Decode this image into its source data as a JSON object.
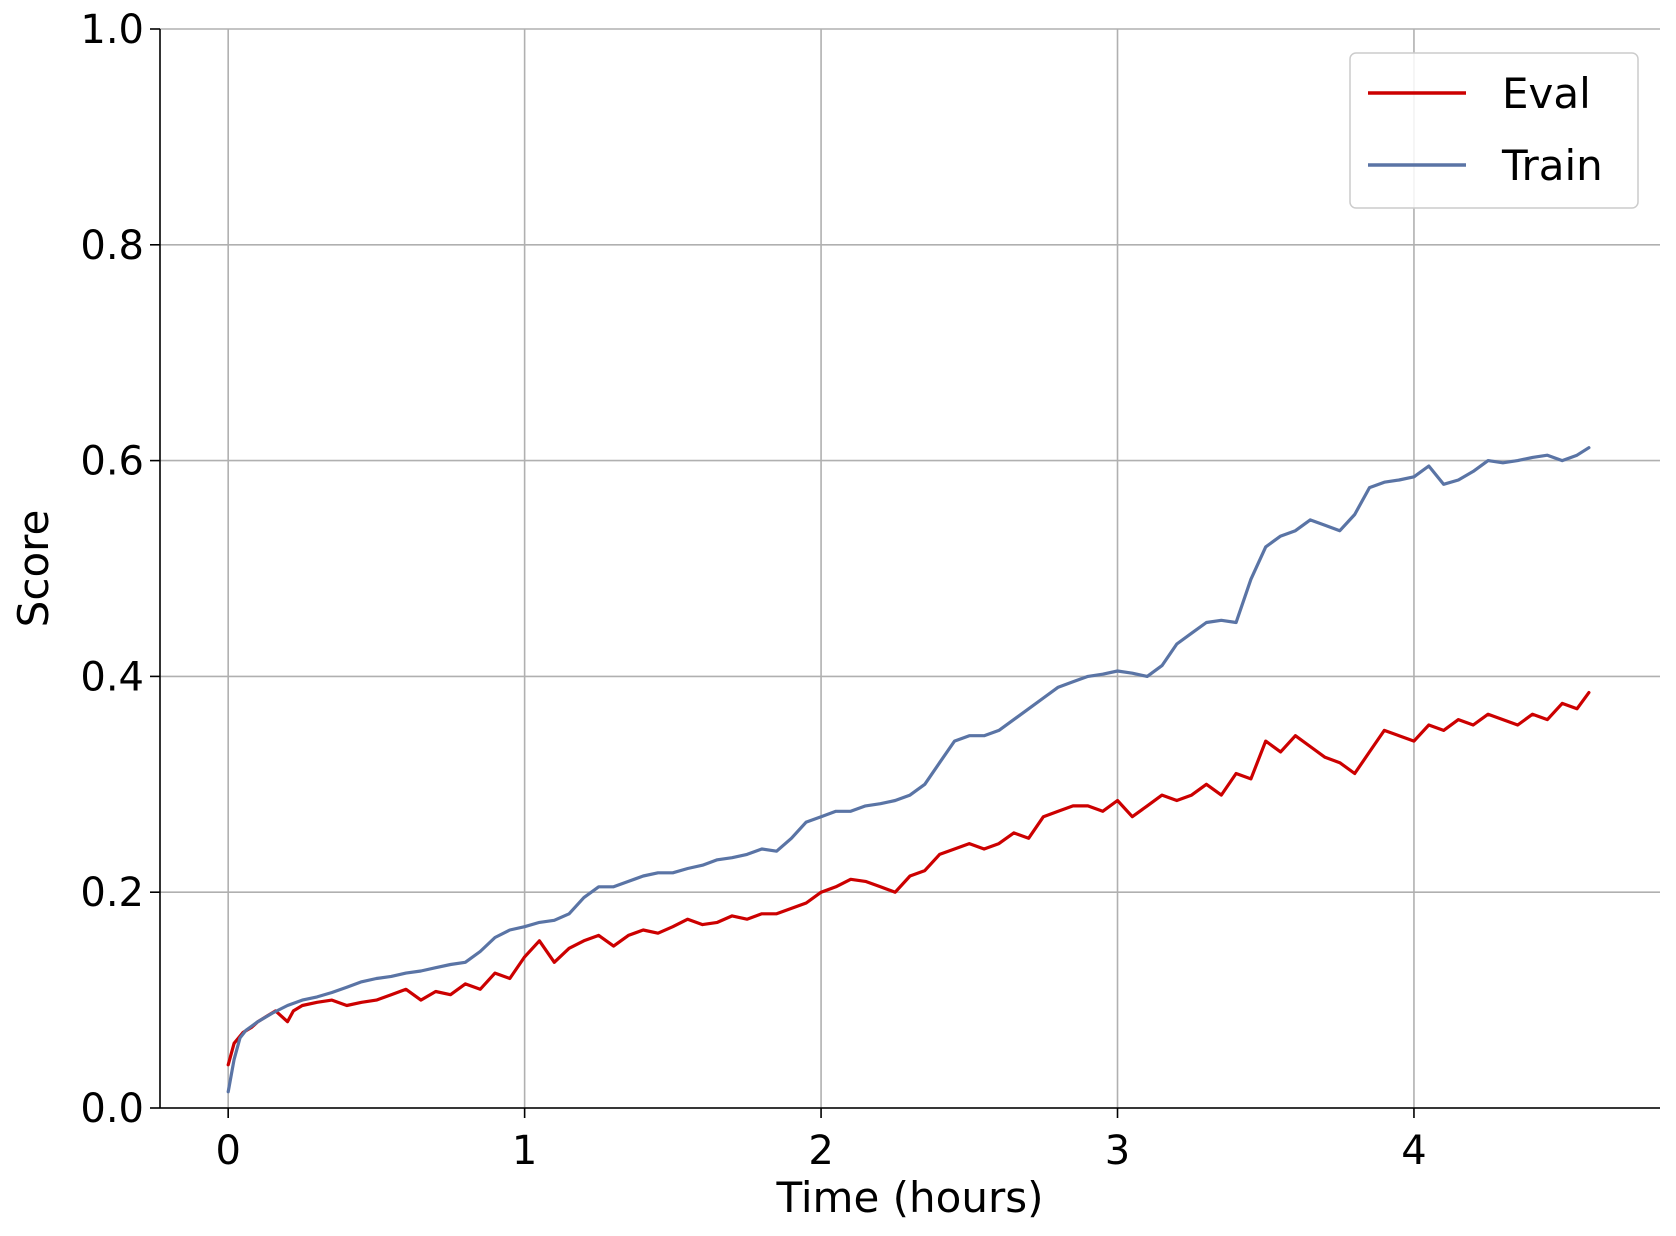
{
  "chart_data": {
    "type": "line",
    "title": "",
    "xlabel": "Time (hours)",
    "ylabel": "Score",
    "xlim": [
      -0.23,
      4.83
    ],
    "ylim": [
      0.0,
      1.0
    ],
    "xticks": [
      0,
      1,
      2,
      3,
      4
    ],
    "yticks": [
      0.0,
      0.2,
      0.4,
      0.6,
      0.8,
      1.0
    ],
    "xtick_labels": [
      "0",
      "1",
      "2",
      "3",
      "4"
    ],
    "ytick_labels": [
      "0.0",
      "0.2",
      "0.4",
      "0.6",
      "0.8",
      "1.0"
    ],
    "grid": true,
    "legend": {
      "position": "top-right"
    },
    "series": [
      {
        "name": "Eval",
        "color": "#cc0000",
        "x": [
          0.0,
          0.02,
          0.05,
          0.08,
          0.1,
          0.13,
          0.16,
          0.2,
          0.22,
          0.25,
          0.3,
          0.35,
          0.4,
          0.45,
          0.5,
          0.55,
          0.6,
          0.65,
          0.7,
          0.75,
          0.8,
          0.85,
          0.9,
          0.95,
          1.0,
          1.05,
          1.1,
          1.15,
          1.2,
          1.25,
          1.3,
          1.35,
          1.4,
          1.45,
          1.5,
          1.55,
          1.6,
          1.65,
          1.7,
          1.75,
          1.8,
          1.85,
          1.9,
          1.95,
          2.0,
          2.05,
          2.1,
          2.15,
          2.2,
          2.25,
          2.3,
          2.35,
          2.4,
          2.45,
          2.5,
          2.55,
          2.6,
          2.65,
          2.7,
          2.75,
          2.8,
          2.85,
          2.9,
          2.95,
          3.0,
          3.05,
          3.1,
          3.15,
          3.2,
          3.25,
          3.3,
          3.35,
          3.4,
          3.45,
          3.5,
          3.55,
          3.6,
          3.65,
          3.7,
          3.75,
          3.8,
          3.85,
          3.9,
          3.95,
          4.0,
          4.05,
          4.1,
          4.15,
          4.2,
          4.25,
          4.3,
          4.35,
          4.4,
          4.45,
          4.5,
          4.55,
          4.59
        ],
        "y": [
          0.04,
          0.06,
          0.07,
          0.075,
          0.08,
          0.085,
          0.09,
          0.08,
          0.09,
          0.095,
          0.098,
          0.1,
          0.095,
          0.098,
          0.1,
          0.105,
          0.11,
          0.1,
          0.108,
          0.105,
          0.115,
          0.11,
          0.125,
          0.12,
          0.14,
          0.155,
          0.135,
          0.148,
          0.155,
          0.16,
          0.15,
          0.16,
          0.165,
          0.162,
          0.168,
          0.175,
          0.17,
          0.172,
          0.178,
          0.175,
          0.18,
          0.18,
          0.185,
          0.19,
          0.2,
          0.205,
          0.212,
          0.21,
          0.205,
          0.2,
          0.215,
          0.22,
          0.235,
          0.24,
          0.245,
          0.24,
          0.245,
          0.255,
          0.25,
          0.27,
          0.275,
          0.28,
          0.28,
          0.275,
          0.285,
          0.27,
          0.28,
          0.29,
          0.285,
          0.29,
          0.3,
          0.29,
          0.31,
          0.305,
          0.34,
          0.33,
          0.345,
          0.335,
          0.325,
          0.32,
          0.31,
          0.33,
          0.35,
          0.345,
          0.34,
          0.355,
          0.35,
          0.36,
          0.355,
          0.365,
          0.36,
          0.355,
          0.365,
          0.36,
          0.375,
          0.37,
          0.385
        ]
      },
      {
        "name": "Train",
        "color": "#5a74a5",
        "x": [
          0.0,
          0.02,
          0.04,
          0.06,
          0.08,
          0.1,
          0.15,
          0.2,
          0.25,
          0.3,
          0.35,
          0.4,
          0.45,
          0.5,
          0.55,
          0.6,
          0.65,
          0.7,
          0.75,
          0.8,
          0.85,
          0.9,
          0.95,
          1.0,
          1.05,
          1.1,
          1.15,
          1.2,
          1.25,
          1.3,
          1.35,
          1.4,
          1.45,
          1.5,
          1.55,
          1.6,
          1.65,
          1.7,
          1.75,
          1.8,
          1.85,
          1.9,
          1.95,
          2.0,
          2.05,
          2.1,
          2.15,
          2.2,
          2.25,
          2.3,
          2.35,
          2.4,
          2.45,
          2.5,
          2.55,
          2.6,
          2.65,
          2.7,
          2.75,
          2.8,
          2.85,
          2.9,
          2.95,
          3.0,
          3.05,
          3.1,
          3.15,
          3.2,
          3.25,
          3.3,
          3.35,
          3.4,
          3.45,
          3.5,
          3.55,
          3.6,
          3.65,
          3.7,
          3.75,
          3.8,
          3.85,
          3.9,
          3.95,
          4.0,
          4.05,
          4.1,
          4.15,
          4.2,
          4.25,
          4.3,
          4.35,
          4.4,
          4.45,
          4.5,
          4.55,
          4.59
        ],
        "y": [
          0.015,
          0.045,
          0.065,
          0.072,
          0.076,
          0.08,
          0.088,
          0.095,
          0.1,
          0.103,
          0.107,
          0.112,
          0.117,
          0.12,
          0.122,
          0.125,
          0.127,
          0.13,
          0.133,
          0.135,
          0.145,
          0.158,
          0.165,
          0.168,
          0.172,
          0.174,
          0.18,
          0.195,
          0.205,
          0.205,
          0.21,
          0.215,
          0.218,
          0.218,
          0.222,
          0.225,
          0.23,
          0.232,
          0.235,
          0.24,
          0.238,
          0.25,
          0.265,
          0.27,
          0.275,
          0.275,
          0.28,
          0.282,
          0.285,
          0.29,
          0.3,
          0.32,
          0.34,
          0.345,
          0.345,
          0.35,
          0.36,
          0.37,
          0.38,
          0.39,
          0.395,
          0.4,
          0.402,
          0.405,
          0.403,
          0.4,
          0.41,
          0.43,
          0.44,
          0.45,
          0.452,
          0.45,
          0.49,
          0.52,
          0.53,
          0.535,
          0.545,
          0.54,
          0.535,
          0.55,
          0.575,
          0.58,
          0.582,
          0.585,
          0.595,
          0.578,
          0.582,
          0.59,
          0.6,
          0.598,
          0.6,
          0.603,
          0.605,
          0.6,
          0.605,
          0.612
        ]
      }
    ]
  }
}
